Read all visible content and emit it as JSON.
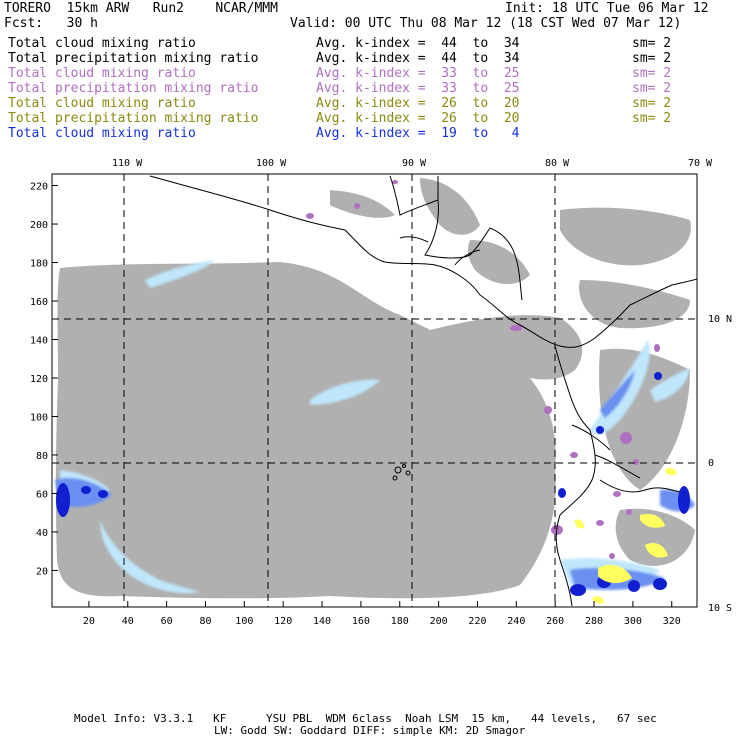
{
  "header": {
    "title": "TORERO  15km ARW   Run2    NCAR/MMM",
    "init": "Init: 18 UTC Tue 06 Mar 12",
    "fcst": "Fcst:   30 h",
    "valid": "Valid: 00 UTC Thu 08 Mar 12 (18 CST Wed 07 Mar 12)"
  },
  "legend": [
    {
      "field": "Total cloud mixing ratio",
      "kindex": "Avg. k-index =  44  to  34",
      "sm": "sm= 2",
      "color": "#000000"
    },
    {
      "field": "Total precipitation mixing ratio",
      "kindex": "Avg. k-index =  44  to  34",
      "sm": "sm= 2",
      "color": "#000000"
    },
    {
      "field": "Total cloud mixing ratio",
      "kindex": "Avg. k-index =  33  to  25",
      "sm": "sm= 2",
      "color": "#b070c0"
    },
    {
      "field": "Total precipitation mixing ratio",
      "kindex": "Avg. k-index =  33  to  25",
      "sm": "sm= 2",
      "color": "#b070c0"
    },
    {
      "field": "Total cloud mixing ratio",
      "kindex": "Avg. k-index =  26  to  20",
      "sm": "sm= 2",
      "color": "#8a8a10"
    },
    {
      "field": "Total precipitation mixing ratio",
      "kindex": "Avg. k-index =  26  to  20",
      "sm": "sm= 2",
      "color": "#8a8a10"
    },
    {
      "field": "Total cloud mixing ratio",
      "kindex": "Avg. k-index =  19  to   4",
      "sm": "",
      "color": "#1530e0"
    }
  ],
  "map": {
    "lon_labels": [
      "110 W",
      "100 W",
      "90 W",
      "80 W",
      "70 W"
    ],
    "lat_labels": [
      "10 N",
      "0",
      "10 S"
    ],
    "x_ticks": [
      20,
      40,
      60,
      80,
      100,
      120,
      140,
      160,
      180,
      200,
      220,
      240,
      260,
      280,
      300,
      320
    ],
    "y_ticks": [
      20,
      40,
      60,
      80,
      100,
      120,
      140,
      160,
      180,
      200,
      220
    ],
    "grid_x_range": [
      1,
      333
    ],
    "grid_y_range": [
      1,
      226
    ],
    "colors": {
      "gray_cloud": "#b0b0b0",
      "purple_cloud": "#b070c0",
      "light_blue": "#bfe6fb",
      "mid_blue": "#6a8ff0",
      "deep_blue": "#1020d0",
      "yellow": "#ffff60",
      "coast": "#000000"
    }
  },
  "footer": {
    "line1": "Model Info: V3.3.1   KF      YSU PBL  WDM 6class  Noah LSM  15 km,   44 levels,   67 sec",
    "line2": "LW: Godd SW: Goddard DIFF: simple KM: 2D Smagor"
  }
}
